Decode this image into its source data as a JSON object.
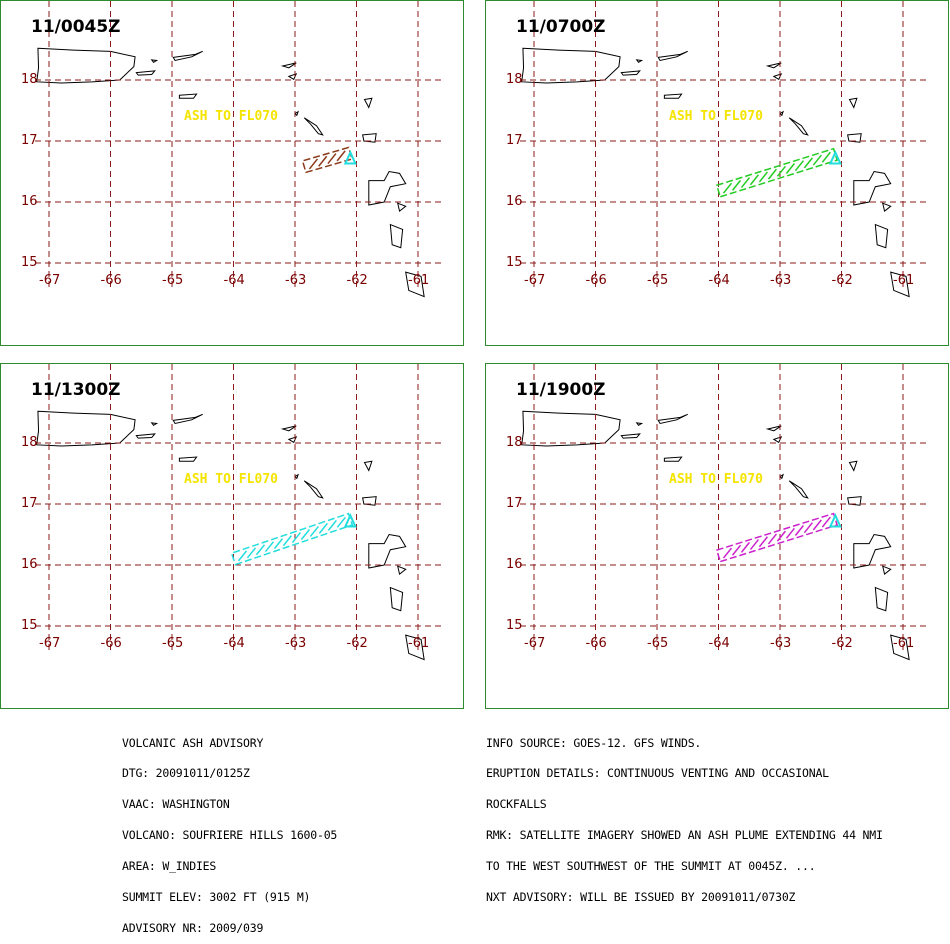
{
  "panels": [
    {
      "time": "11/0045Z",
      "plume_color": "#8b3a1a",
      "plume": [
        [
          -62.85,
          16.58
        ],
        [
          -62.1,
          16.8
        ]
      ]
    },
    {
      "time": "11/0700Z",
      "plume_color": "#22cc22",
      "plume": [
        [
          -64.0,
          16.18
        ],
        [
          -62.1,
          16.78
        ]
      ]
    },
    {
      "time": "11/1300Z",
      "plume_color": "#22dddd",
      "plume": [
        [
          -64.0,
          16.1
        ],
        [
          -62.1,
          16.75
        ]
      ]
    },
    {
      "time": "11/1900Z",
      "plume_color": "#cc22cc",
      "plume": [
        [
          -64.0,
          16.15
        ],
        [
          -62.1,
          16.75
        ]
      ]
    }
  ],
  "ash_label": "ASH TO FL070",
  "lat_labels": [
    "18",
    "17",
    "16",
    "15"
  ],
  "lon_labels": [
    "-67",
    "-66",
    "-65",
    "-64",
    "-63",
    "-62",
    "-61"
  ],
  "volcano_marker_color": "#22dddd",
  "grid_color": "#8b1a1a",
  "map": {
    "lon_range": [
      -67,
      -61
    ],
    "lat_range": [
      15,
      18
    ]
  },
  "advisory_left": [
    "VOLCANIC ASH ADVISORY",
    "DTG: 20091011/0125Z",
    "VAAC: WASHINGTON",
    "VOLCANO: SOUFRIERE HILLS 1600-05",
    "AREA: W_INDIES",
    "SUMMIT ELEV: 3002 FT (915 M)",
    "ADVISORY NR: 2009/039"
  ],
  "advisory_right": [
    "INFO SOURCE: GOES-12. GFS WINDS.",
    "ERUPTION DETAILS: CONTINUOUS VENTING AND OCCASIONAL",
    "ROCKFALLS",
    "RMK: SATELLITE IMAGERY SHOWED AN ASH PLUME EXTENDING 44 NMI",
    "TO THE WEST SOUTHWEST OF THE SUMMIT AT 0045Z. ...",
    "NXT ADVISORY: WILL BE ISSUED BY 20091011/0730Z"
  ]
}
